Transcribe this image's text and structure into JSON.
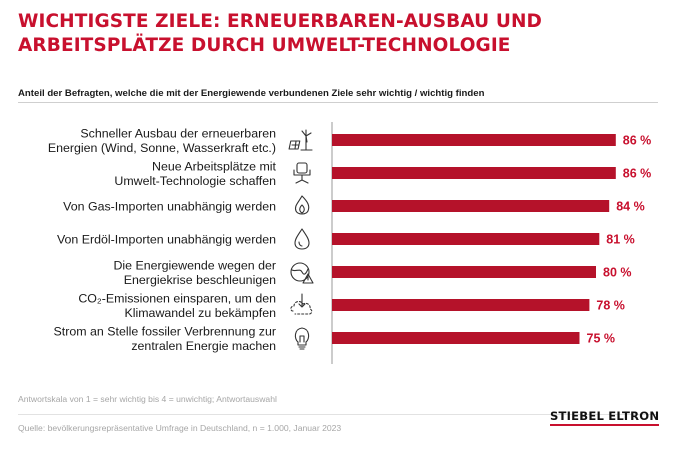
{
  "title_line1": "WICHTIGSTE ZIELE: ERNEUERBAREN-AUSBAU UND",
  "title_line2": "ARBEITSPLÄTZE DURCH UMWELT-TECHNOLOGIE",
  "subtitle": "Anteil der Befragten, welche die mit der Energiewende verbundenen Ziele sehr wichtig / wichtig finden",
  "footnote_scale": "Antwortskala von 1 = sehr wichtig bis 4 = unwichtig; Antwortauswahl",
  "source": "Quelle: bevölkerungsrepräsentative Umfrage in Deutschland, n = 1.000, Januar 2023",
  "brand": "STIEBEL ELTRON",
  "colors": {
    "accent": "#c8102e",
    "bar": "#b5122a"
  },
  "chart_data": {
    "type": "bar",
    "orientation": "horizontal",
    "unit": "%",
    "categories": [
      [
        "Schneller Ausbau der erneuerbaren",
        "Energien (Wind, Sonne, Wasserkraft etc.)"
      ],
      [
        "Neue Arbeitsplätze mit",
        "Umwelt-Technologie schaffen"
      ],
      [
        "Von Gas-Importen unabhängig werden"
      ],
      [
        "Von Erdöl-Importen unabhängig werden"
      ],
      [
        "Die Energiewende wegen der",
        "Energiekrise beschleunigen"
      ],
      [
        "CO₂-Emissionen einsparen, um den",
        "Klimawandel zu bekämpfen"
      ],
      [
        "Strom an Stelle fossiler Verbrennung zur",
        "zentralen Energie machen"
      ]
    ],
    "values": [
      86,
      86,
      84,
      81,
      80,
      78,
      75
    ],
    "value_labels": [
      "86 %",
      "86 %",
      "84 %",
      "81 %",
      "80 %",
      "78 %",
      "75 %"
    ],
    "icons": [
      "wind-solar-icon",
      "office-chair-icon",
      "gas-flame-icon",
      "oil-drop-icon",
      "globe-warning-icon",
      "emission-cloud-icon",
      "light-bulb-icon"
    ],
    "xlim": [
      0,
      100
    ]
  }
}
